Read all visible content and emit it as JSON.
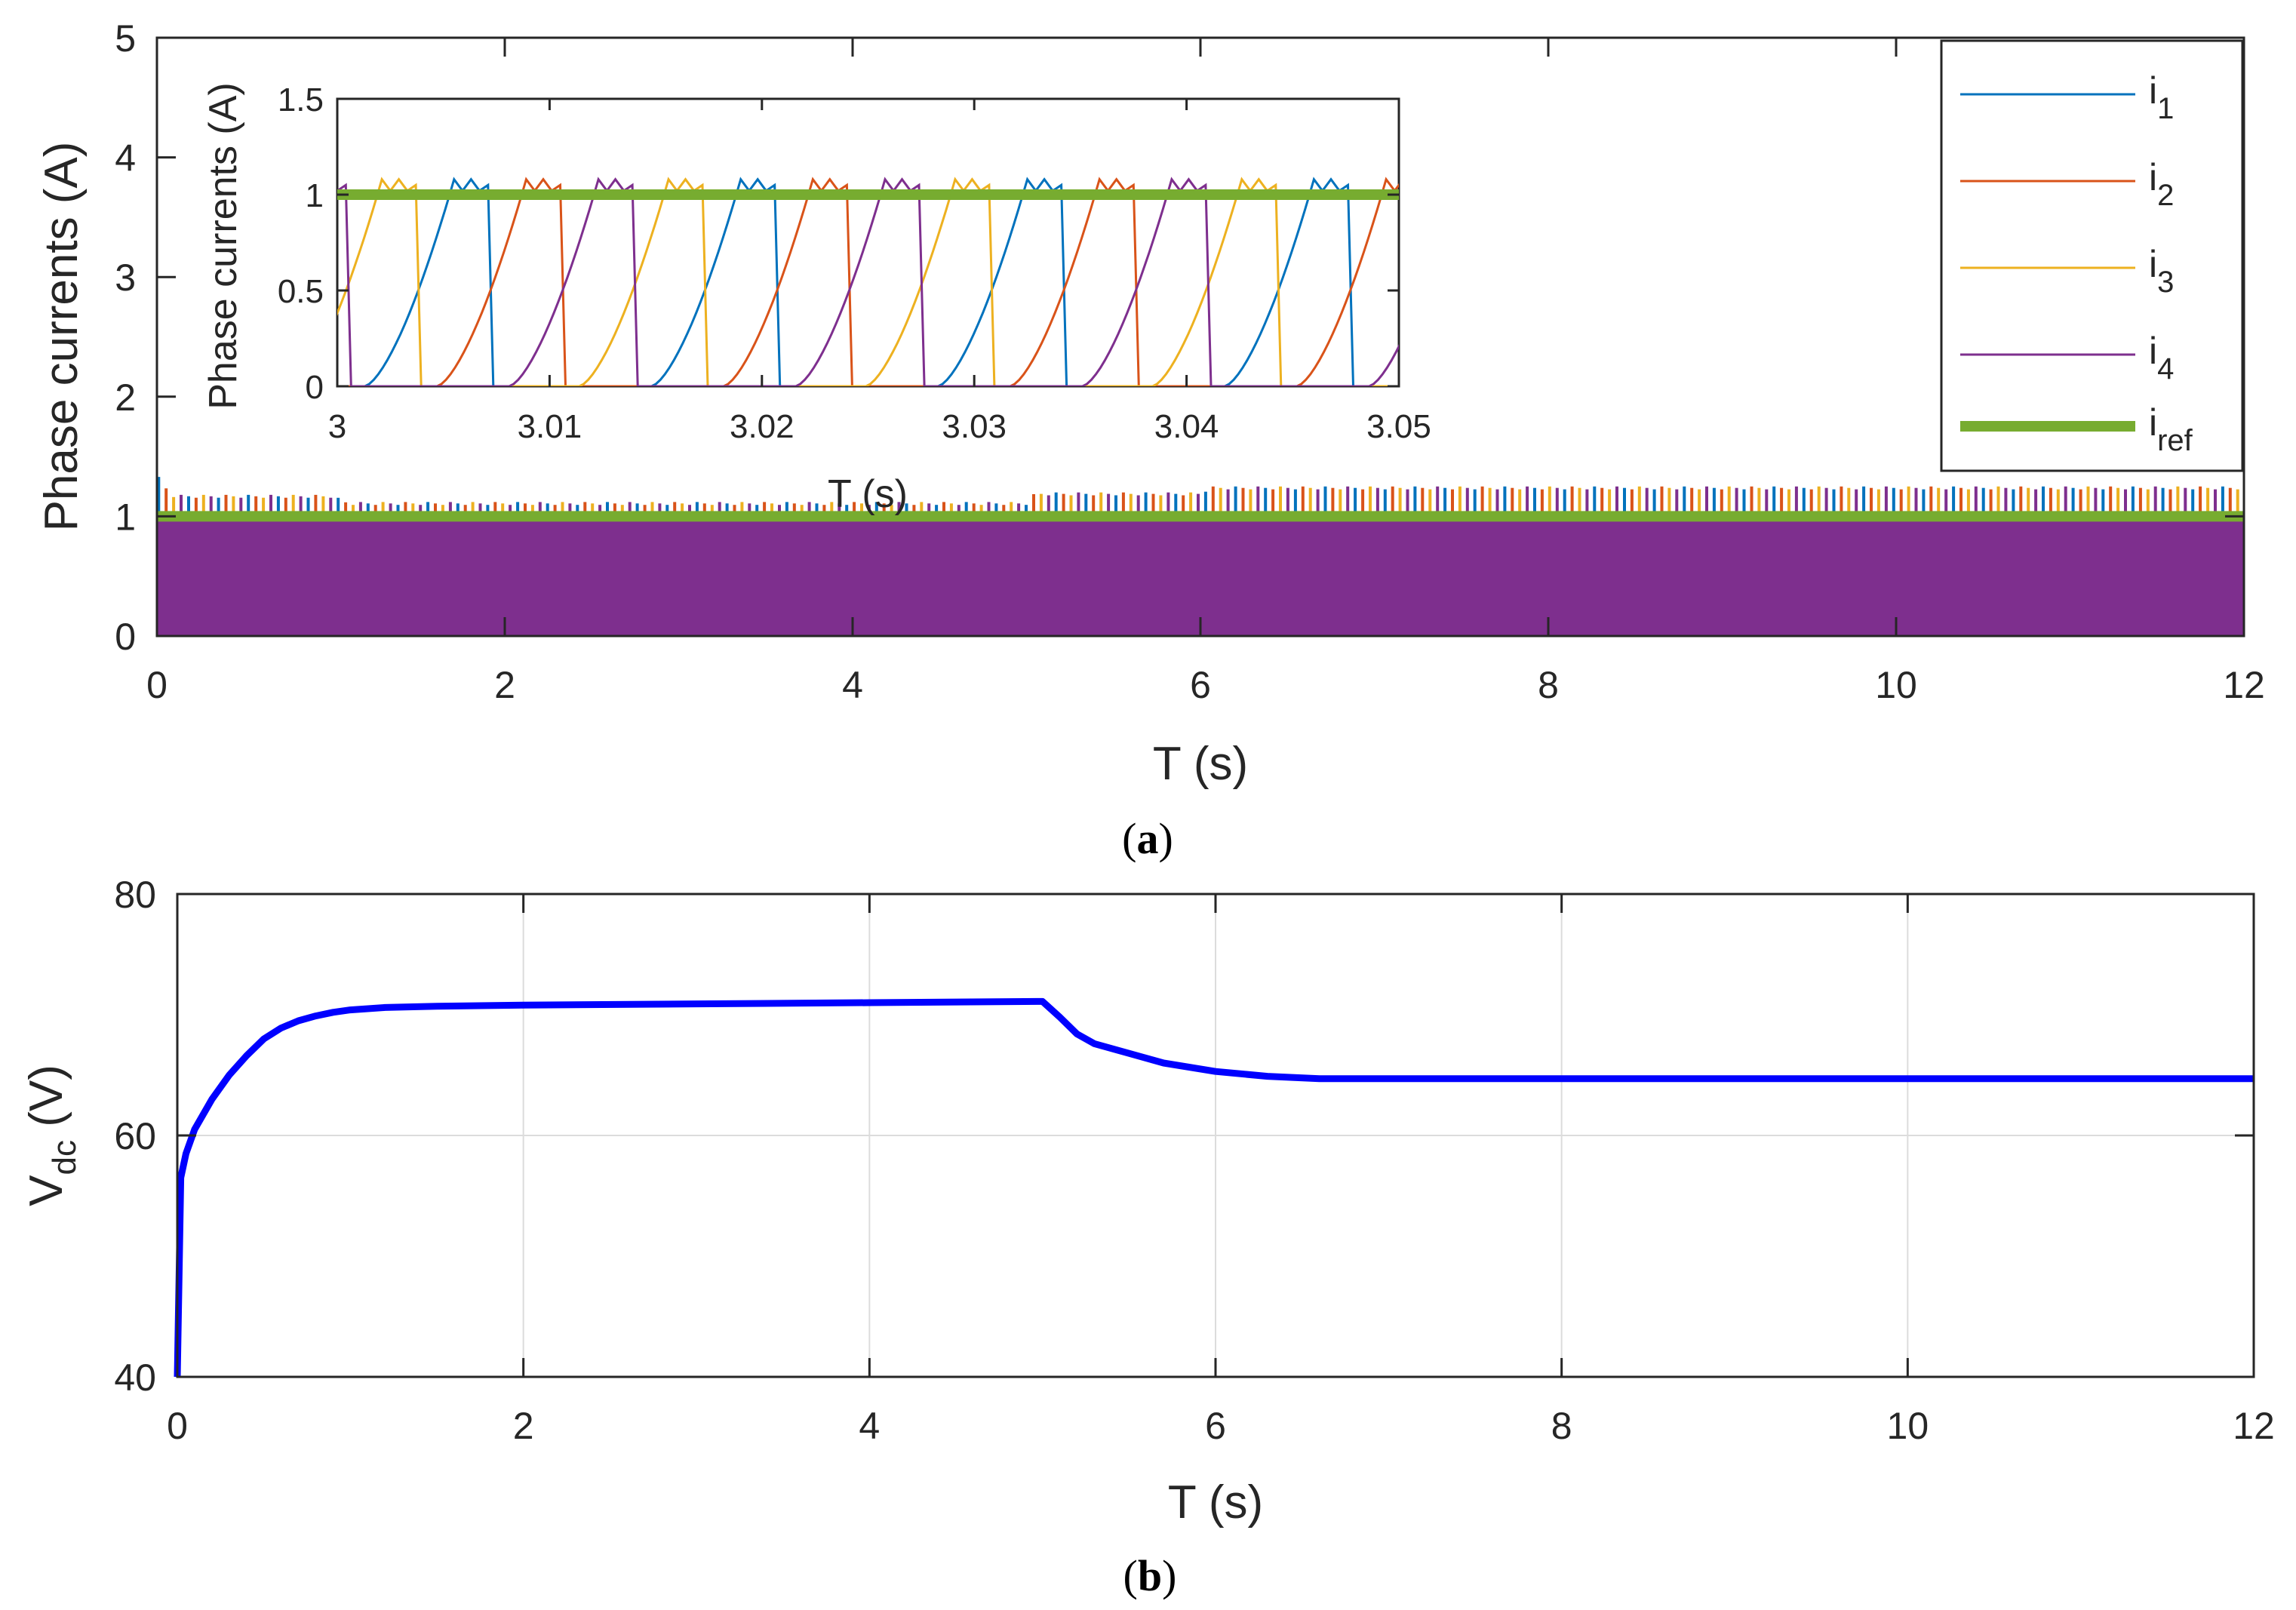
{
  "colors": {
    "i1": "#0072BD",
    "i2": "#D95319",
    "i3": "#EDB120",
    "i4": "#7E2F8E",
    "iref": "#77AC30",
    "vdc": "#0000FF",
    "axis": "#262626",
    "grid": "#DCDCDC"
  },
  "chart_data": [
    {
      "id": "a",
      "type": "line",
      "caption": {
        "open": "(",
        "letter": "a",
        "close": ")"
      },
      "xlabel": "T (s)",
      "ylabel": "Phase currents (A)",
      "xlim": [
        0,
        12
      ],
      "ylim": [
        0,
        5
      ],
      "xticks": [
        0,
        2,
        4,
        6,
        8,
        10,
        12
      ],
      "yticks": [
        0,
        1,
        2,
        3,
        4,
        5
      ],
      "grid": false,
      "legend": {
        "placement": "top-right",
        "entries": [
          {
            "key": "i1",
            "base": "i",
            "sub": "1"
          },
          {
            "key": "i2",
            "base": "i",
            "sub": "2"
          },
          {
            "key": "i3",
            "base": "i",
            "sub": "3"
          },
          {
            "key": "i4",
            "base": "i",
            "sub": "4"
          },
          {
            "key": "iref",
            "base": "i",
            "sub": "ref"
          }
        ]
      },
      "series": [
        {
          "name": "i_ref",
          "x": [
            0,
            12
          ],
          "y": [
            1.0,
            1.0
          ]
        },
        {
          "name": "phase currents peak envelope",
          "x": [
            0,
            0.05,
            0.1,
            1.0,
            1.1,
            5.0,
            5.05,
            6.0,
            6.05,
            12
          ],
          "y": [
            1.35,
            1.25,
            1.18,
            1.18,
            1.12,
            1.12,
            1.2,
            1.2,
            1.25,
            1.25
          ]
        }
      ],
      "inset": {
        "xlabel": "T (s)",
        "ylabel": "Phase currents (A)",
        "xlim": [
          3,
          3.05
        ],
        "ylim": [
          0,
          1.5
        ],
        "xticks": [
          3,
          3.01,
          3.02,
          3.03,
          3.04,
          3.05
        ],
        "yticks": [
          0,
          0.5,
          1,
          1.5
        ],
        "period_s": 0.0135,
        "rise_s": 0.0042,
        "flat_s": 0.0016,
        "peak_a": 1.08,
        "phase_rise_start_s": {
          "i1": 3.0013,
          "i2": 3.0047,
          "i3": 2.9979,
          "i4": 3.0081
        },
        "iref_a": 1.0
      }
    },
    {
      "id": "b",
      "type": "line",
      "caption": {
        "open": "(",
        "letter": "b",
        "close": ")"
      },
      "xlabel": "T (s)",
      "ylabel": {
        "base": "V",
        "sub": "dc",
        "unit": " (V)"
      },
      "xlim": [
        0,
        12
      ],
      "ylim": [
        40,
        80
      ],
      "xticks": [
        0,
        2,
        4,
        6,
        8,
        10,
        12
      ],
      "yticks": [
        40,
        60,
        80
      ],
      "grid": true,
      "series": [
        {
          "name": "V_dc",
          "x": [
            0,
            0.02,
            0.05,
            0.1,
            0.2,
            0.3,
            0.4,
            0.5,
            0.6,
            0.7,
            0.8,
            0.9,
            1.0,
            1.2,
            1.5,
            2.0,
            3.0,
            4.0,
            4.97,
            5.0,
            5.1,
            5.2,
            5.3,
            5.5,
            5.7,
            6.0,
            6.3,
            6.6,
            7.0,
            8.0,
            10.0,
            12.0
          ],
          "y": [
            40,
            56.5,
            58.5,
            60.5,
            63,
            65,
            66.6,
            68,
            68.9,
            69.5,
            69.9,
            70.2,
            70.4,
            70.6,
            70.7,
            70.8,
            70.9,
            71.0,
            71.1,
            71.1,
            69.8,
            68.4,
            67.6,
            66.8,
            66.0,
            65.3,
            64.9,
            64.7,
            64.7,
            64.7,
            64.7,
            64.7
          ]
        }
      ]
    }
  ]
}
